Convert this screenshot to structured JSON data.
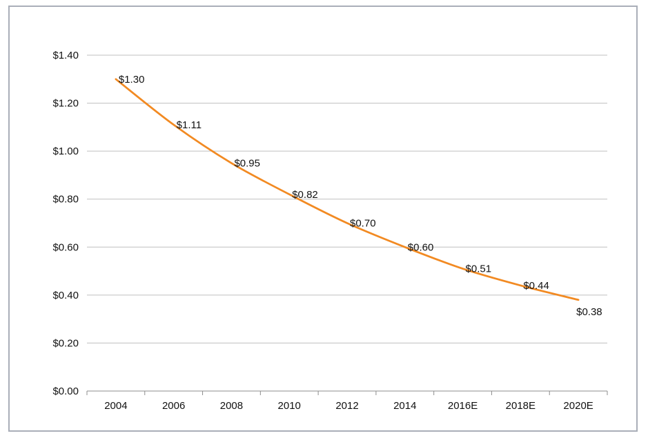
{
  "chart_data": {
    "type": "line",
    "title": "",
    "xlabel": "",
    "ylabel": "",
    "categories": [
      "2004",
      "2006",
      "2008",
      "2010",
      "2012",
      "2014",
      "2016E",
      "2018E",
      "2020E"
    ],
    "series": [
      {
        "values": [
          1.3,
          1.11,
          0.95,
          0.82,
          0.7,
          0.6,
          0.51,
          0.44,
          0.38
        ],
        "data_labels": [
          "$1.30",
          "$1.11",
          "$0.95",
          "$0.82",
          "$0.70",
          "$0.60",
          "$0.51",
          "$0.44",
          "$0.38"
        ],
        "color": "#f28a22"
      }
    ],
    "ylim": [
      0,
      1.4
    ],
    "yticks": [
      0.0,
      0.2,
      0.4,
      0.6,
      0.8,
      1.0,
      1.2,
      1.4
    ],
    "ytick_labels": [
      "$0.00",
      "$0.20",
      "$0.40",
      "$0.60",
      "$0.80",
      "$1.00",
      "$1.20",
      "$1.40"
    ],
    "grid": "horizontal",
    "legend": "none",
    "colors": {
      "gridline": "#bfbfbf",
      "axis": "#8c8c8c",
      "frame": "#a9aeb8"
    }
  }
}
